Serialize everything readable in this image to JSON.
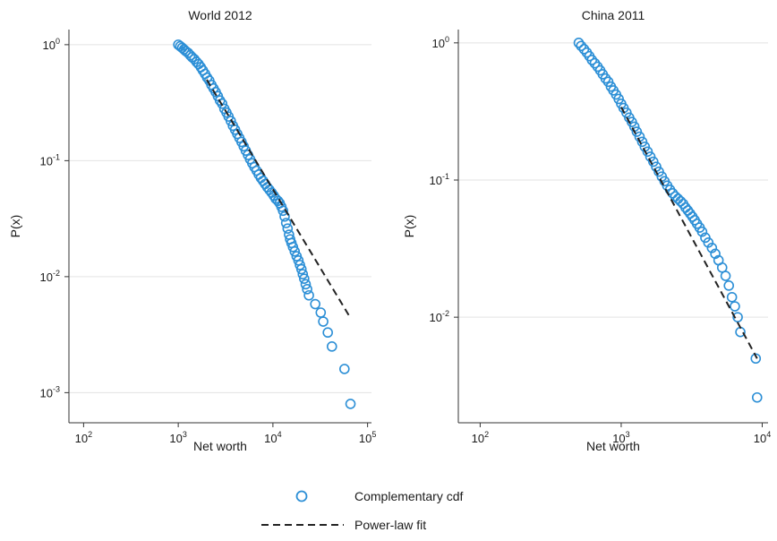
{
  "chart_data": [
    {
      "type": "scatter",
      "title": "World 2012",
      "xlabel": "Net worth",
      "ylabel": "P(x)",
      "xscale": "log",
      "yscale": "log",
      "xlim": [
        70,
        110000
      ],
      "ylim": [
        0.00055,
        1.35
      ],
      "grid": "horizontal",
      "xticks": [
        {
          "base": "10",
          "exp": "2",
          "value": 100
        },
        {
          "base": "10",
          "exp": "3",
          "value": 1000
        },
        {
          "base": "10",
          "exp": "4",
          "value": 10000
        },
        {
          "base": "10",
          "exp": "5",
          "value": 100000
        }
      ],
      "yticks": [
        {
          "base": "10",
          "exp": "0",
          "value": 1
        },
        {
          "base": "10",
          "exp": "-1",
          "value": 0.1
        },
        {
          "base": "10",
          "exp": "-2",
          "value": 0.01
        },
        {
          "base": "10",
          "exp": "-3",
          "value": 0.001
        }
      ],
      "series": [
        {
          "name": "Complementary cdf",
          "style": "open-circle",
          "color": "#2c8fd6",
          "points": [
            [
              1000,
              1.0
            ],
            [
              1050,
              0.97
            ],
            [
              1100,
              0.94
            ],
            [
              1150,
              0.91
            ],
            [
              1200,
              0.88
            ],
            [
              1270,
              0.85
            ],
            [
              1340,
              0.81
            ],
            [
              1400,
              0.78
            ],
            [
              1480,
              0.75
            ],
            [
              1560,
              0.71
            ],
            [
              1640,
              0.68
            ],
            [
              1730,
              0.64
            ],
            [
              1820,
              0.6
            ],
            [
              1920,
              0.56
            ],
            [
              2020,
              0.52
            ],
            [
              2130,
              0.49
            ],
            [
              2240,
              0.45
            ],
            [
              2360,
              0.42
            ],
            [
              2490,
              0.39
            ],
            [
              2620,
              0.36
            ],
            [
              2760,
              0.33
            ],
            [
              2910,
              0.31
            ],
            [
              3070,
              0.28
            ],
            [
              3230,
              0.26
            ],
            [
              3400,
              0.24
            ],
            [
              3590,
              0.22
            ],
            [
              3780,
              0.2
            ],
            [
              3980,
              0.185
            ],
            [
              4200,
              0.17
            ],
            [
              4420,
              0.157
            ],
            [
              4660,
              0.145
            ],
            [
              4910,
              0.133
            ],
            [
              5170,
              0.122
            ],
            [
              5450,
              0.112
            ],
            [
              5740,
              0.103
            ],
            [
              6050,
              0.095
            ],
            [
              6380,
              0.088
            ],
            [
              6720,
              0.082
            ],
            [
              7080,
              0.076
            ],
            [
              7460,
              0.071
            ],
            [
              7860,
              0.067
            ],
            [
              8280,
              0.063
            ],
            [
              8730,
              0.059
            ],
            [
              9200,
              0.056
            ],
            [
              9700,
              0.053
            ],
            [
              10200,
              0.05
            ],
            [
              10700,
              0.047
            ],
            [
              11300,
              0.045
            ],
            [
              11800,
              0.043
            ],
            [
              12300,
              0.04
            ],
            [
              12800,
              0.037
            ],
            [
              13300,
              0.033
            ],
            [
              13800,
              0.029
            ],
            [
              14300,
              0.026
            ],
            [
              14800,
              0.023
            ],
            [
              15200,
              0.021
            ],
            [
              15700,
              0.0195
            ],
            [
              16300,
              0.018
            ],
            [
              17000,
              0.0165
            ],
            [
              17800,
              0.015
            ],
            [
              18600,
              0.0138
            ],
            [
              19300,
              0.0126
            ],
            [
              20000,
              0.0116
            ],
            [
              20700,
              0.0105
            ],
            [
              21400,
              0.0096
            ],
            [
              22200,
              0.0086
            ],
            [
              23000,
              0.0078
            ],
            [
              24000,
              0.0069
            ],
            [
              28000,
              0.0058
            ],
            [
              32000,
              0.0049
            ],
            [
              34000,
              0.0041
            ],
            [
              38000,
              0.0033
            ],
            [
              42000,
              0.0025
            ],
            [
              57000,
              0.0016
            ],
            [
              66000,
              0.0008
            ]
          ]
        },
        {
          "name": "Power-law fit",
          "style": "dashed-line",
          "color": "#222222",
          "points": [
            [
              2000,
              0.5
            ],
            [
              66000,
              0.0044
            ]
          ]
        }
      ]
    },
    {
      "type": "scatter",
      "title": "China 2011",
      "xlabel": "Net worth",
      "ylabel": "P(x)",
      "xscale": "log",
      "yscale": "log",
      "xlim": [
        70,
        11000
      ],
      "ylim": [
        0.0017,
        1.25
      ],
      "grid": "horizontal",
      "xticks": [
        {
          "base": "10",
          "exp": "2",
          "value": 100
        },
        {
          "base": "10",
          "exp": "3",
          "value": 1000
        },
        {
          "base": "10",
          "exp": "4",
          "value": 10000
        }
      ],
      "yticks": [
        {
          "base": "10",
          "exp": "0",
          "value": 1
        },
        {
          "base": "10",
          "exp": "-1",
          "value": 0.1
        },
        {
          "base": "10",
          "exp": "-2",
          "value": 0.01
        }
      ],
      "series": [
        {
          "name": "Complementary cdf",
          "style": "open-circle",
          "color": "#2c8fd6",
          "points": [
            [
              500,
              1.0
            ],
            [
              520,
              0.95
            ],
            [
              545,
              0.9
            ],
            [
              570,
              0.85
            ],
            [
              595,
              0.8
            ],
            [
              620,
              0.75
            ],
            [
              650,
              0.71
            ],
            [
              680,
              0.67
            ],
            [
              710,
              0.63
            ],
            [
              740,
              0.59
            ],
            [
              775,
              0.55
            ],
            [
              810,
              0.52
            ],
            [
              845,
              0.48
            ],
            [
              880,
              0.45
            ],
            [
              920,
              0.42
            ],
            [
              960,
              0.39
            ],
            [
              1000,
              0.36
            ],
            [
              1040,
              0.335
            ],
            [
              1090,
              0.31
            ],
            [
              1140,
              0.285
            ],
            [
              1190,
              0.265
            ],
            [
              1240,
              0.245
            ],
            [
              1290,
              0.225
            ],
            [
              1350,
              0.207
            ],
            [
              1410,
              0.19
            ],
            [
              1470,
              0.175
            ],
            [
              1540,
              0.161
            ],
            [
              1610,
              0.148
            ],
            [
              1690,
              0.136
            ],
            [
              1770,
              0.125
            ],
            [
              1850,
              0.115
            ],
            [
              1940,
              0.106
            ],
            [
              2030,
              0.098
            ],
            [
              2120,
              0.091
            ],
            [
              2220,
              0.085
            ],
            [
              2320,
              0.08
            ],
            [
              2420,
              0.076
            ],
            [
              2530,
              0.073
            ],
            [
              2640,
              0.07
            ],
            [
              2750,
              0.067
            ],
            [
              2860,
              0.063
            ],
            [
              2970,
              0.06
            ],
            [
              3080,
              0.057
            ],
            [
              3200,
              0.054
            ],
            [
              3320,
              0.051
            ],
            [
              3450,
              0.048
            ],
            [
              3600,
              0.045
            ],
            [
              3750,
              0.042
            ],
            [
              3950,
              0.038
            ],
            [
              4150,
              0.035
            ],
            [
              4400,
              0.032
            ],
            [
              4650,
              0.029
            ],
            [
              4900,
              0.026
            ],
            [
              5200,
              0.023
            ],
            [
              5500,
              0.02
            ],
            [
              5800,
              0.017
            ],
            [
              6100,
              0.014
            ],
            [
              6400,
              0.012
            ],
            [
              6700,
              0.01
            ],
            [
              7000,
              0.0078
            ],
            [
              9000,
              0.005
            ],
            [
              9200,
              0.0026
            ]
          ]
        },
        {
          "name": "Power-law fit",
          "style": "dashed-line",
          "color": "#222222",
          "points": [
            [
              1000,
              0.34
            ],
            [
              9200,
              0.005
            ]
          ]
        }
      ]
    }
  ],
  "legend": {
    "placement": "bottom-center",
    "entries": [
      {
        "label": "Complementary cdf",
        "marker": "open-circle",
        "color": "#2c8fd6"
      },
      {
        "label": "Power-law fit",
        "marker": "dashed-line",
        "color": "#222222"
      }
    ]
  }
}
